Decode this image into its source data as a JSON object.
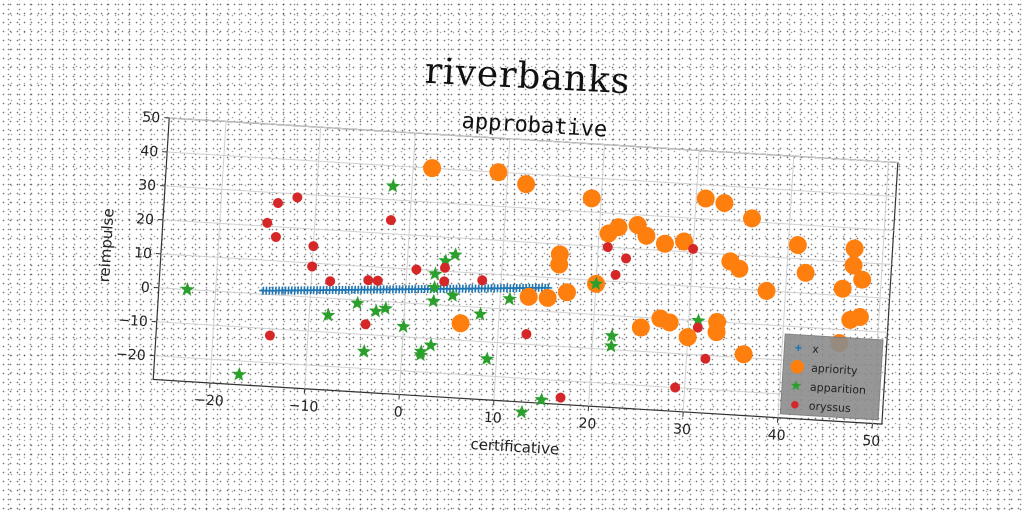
{
  "suptitle": "riverbanks",
  "chart_data": {
    "type": "scatter",
    "title": "approbative",
    "xlabel": "certificative",
    "ylabel": "reimpulse",
    "xlim": [
      -26,
      51
    ],
    "ylim": [
      -27,
      50
    ],
    "xticks": [
      -20,
      -10,
      0,
      10,
      20,
      30,
      40,
      50
    ],
    "yticks": [
      -20,
      -10,
      0,
      10,
      20,
      30,
      40,
      50
    ],
    "grid": true,
    "legend_position": "bottom-right",
    "series": [
      {
        "name": "x",
        "marker": "plus",
        "color": "#1f77b4",
        "x": [
          -15,
          -14,
          -13,
          -12,
          -11,
          -10,
          -9,
          -8,
          -7,
          -6,
          -5,
          -4,
          -3,
          -2,
          -1,
          0,
          1,
          2,
          3,
          4,
          5,
          6,
          7,
          8,
          9,
          10,
          11,
          12,
          13,
          14,
          15
        ],
        "y": [
          1.0,
          1.2,
          1.4,
          1.6,
          1.8,
          2.0,
          2.2,
          2.4,
          2.6,
          2.8,
          3.0,
          3.2,
          3.4,
          3.6,
          3.8,
          4.0,
          4.2,
          4.4,
          4.6,
          4.8,
          5.0,
          5.2,
          5.4,
          5.6,
          5.8,
          6.0,
          6.2,
          6.4,
          6.6,
          6.8,
          7.0
        ]
      },
      {
        "name": "apriority",
        "marker": "circle-large",
        "color": "#ff7f0e",
        "x": [
          2,
          9,
          12,
          19,
          21,
          22,
          24,
          25,
          27,
          29,
          31,
          33,
          34,
          35,
          36,
          38,
          41,
          42,
          46,
          47,
          47,
          48,
          48,
          16,
          16,
          17,
          20,
          25,
          27,
          28,
          30,
          33,
          33,
          36,
          46,
          47,
          6,
          15,
          13
        ],
        "y": [
          40,
          40,
          37,
          34,
          24,
          26,
          27,
          24,
          22,
          23,
          36,
          35,
          18,
          16,
          31,
          10,
          24,
          16,
          12,
          24,
          19,
          15,
          4,
          17,
          14,
          6,
          9,
          -3,
          0,
          -1,
          -5,
          0,
          -3,
          -9,
          -4,
          3,
          -5,
          4,
          4
        ]
      },
      {
        "name": "apparition",
        "marker": "star",
        "color": "#2ca02c",
        "x": [
          -23,
          -17,
          -8,
          -5,
          -3,
          -2,
          0,
          2,
          3,
          4,
          5,
          5,
          8,
          9,
          11,
          -2,
          3,
          3,
          20,
          22,
          22,
          31,
          13,
          15,
          2,
          -4,
          3
        ],
        "y": [
          0,
          -24,
          -5,
          -1,
          -3,
          -2,
          -7,
          -15,
          -12,
          13,
          15,
          3,
          -2,
          -15,
          3,
          34,
          9,
          1,
          9,
          -9,
          -6,
          0,
          -30,
          -26,
          -14,
          -15,
          5
        ],
        "style_note": ""
      },
      {
        "name": "oryssus",
        "marker": "circle-small",
        "color": "#d62728",
        "x": [
          -15,
          -14,
          -14,
          -12,
          -10,
          -10,
          -8,
          -4,
          -3,
          -2,
          -3,
          1,
          4,
          4,
          8,
          13,
          17,
          21,
          22,
          23,
          30,
          31,
          32,
          29,
          -4,
          -14
        ],
        "y": [
          21,
          27,
          17,
          29,
          15,
          9,
          5,
          6,
          6,
          24,
          6,
          10,
          11,
          7,
          8,
          -7,
          -25,
          20,
          12,
          17,
          21,
          -2,
          -11,
          -20,
          -7,
          -12
        ]
      }
    ]
  }
}
